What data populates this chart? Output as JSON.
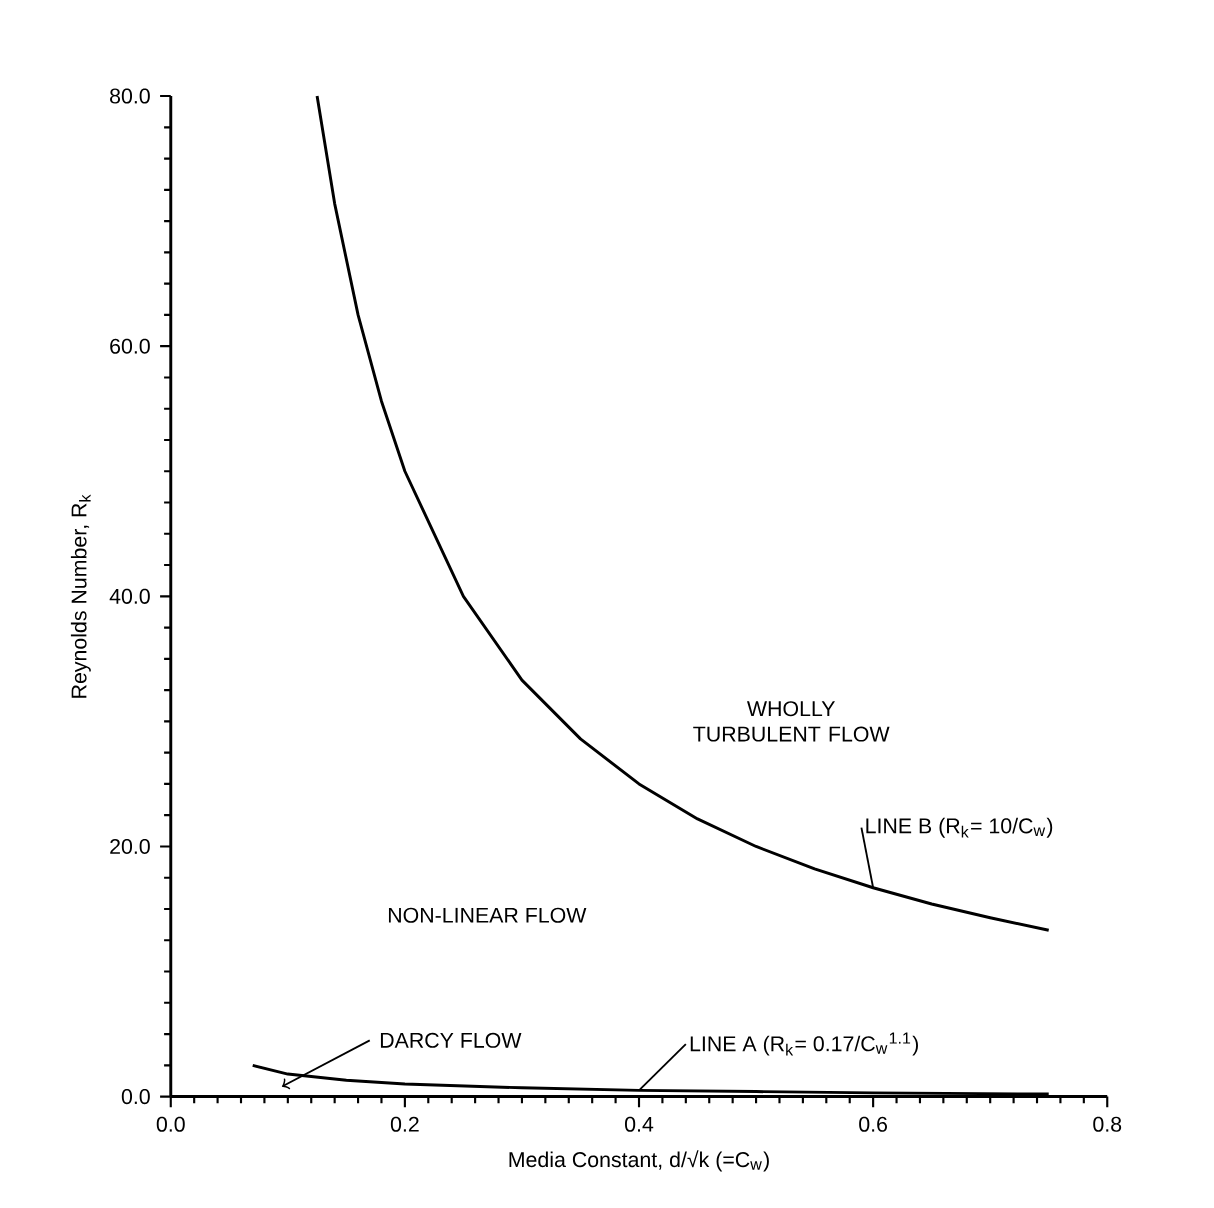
{
  "chart_data": {
    "type": "line",
    "xlabel": "Media Constant, d/√k (=C$_{w}$)",
    "ylabel": "Reynolds Number, R$_{k}$",
    "xlim": [
      0,
      0.8
    ],
    "ylim": [
      0,
      80
    ],
    "xticks": [
      {
        "value": 0,
        "label": "0.0"
      },
      {
        "value": 0.2,
        "label": "0.2"
      },
      {
        "value": 0.4,
        "label": "0.4"
      },
      {
        "value": 0.6,
        "label": "0.6"
      },
      {
        "value": 0.8,
        "label": "0.8"
      }
    ],
    "yticks": [
      {
        "value": 0,
        "label": "0.0"
      },
      {
        "value": 20,
        "label": "20.0"
      },
      {
        "value": 40,
        "label": "40.0"
      },
      {
        "value": 60,
        "label": "60.0"
      },
      {
        "value": 80,
        "label": "80.0"
      }
    ],
    "series": [
      {
        "name": "LINE A (R$_{k}$= 0.17/C$_{w}$$^{1.1}$)",
        "color": "#000000",
        "x": [
          0.07,
          0.1,
          0.15,
          0.2,
          0.3,
          0.4,
          0.5,
          0.6,
          0.75
        ],
        "values": [
          2.5,
          1.8,
          1.3,
          1.0,
          0.7,
          0.5,
          0.4,
          0.3,
          0.2
        ]
      },
      {
        "name": "LINE B (R$_{k}$= 10/C$_{w}$)",
        "color": "#000000",
        "x": [
          0.125,
          0.14,
          0.16,
          0.18,
          0.2,
          0.25,
          0.3,
          0.35,
          0.4,
          0.45,
          0.5,
          0.55,
          0.6,
          0.65,
          0.7,
          0.75
        ],
        "values": [
          80,
          71.4,
          62.5,
          55.6,
          50,
          40,
          33.3,
          28.6,
          25,
          22.2,
          20,
          18.2,
          16.7,
          15.4,
          14.3,
          13.3
        ]
      }
    ],
    "annotations": [
      "WHOLLY TURBULENT FLOW",
      "NON-LINEAR FLOW",
      "DARCY FLOW"
    ],
    "grid": false,
    "legend": false,
    "marker": "none",
    "line_style": "solid"
  }
}
